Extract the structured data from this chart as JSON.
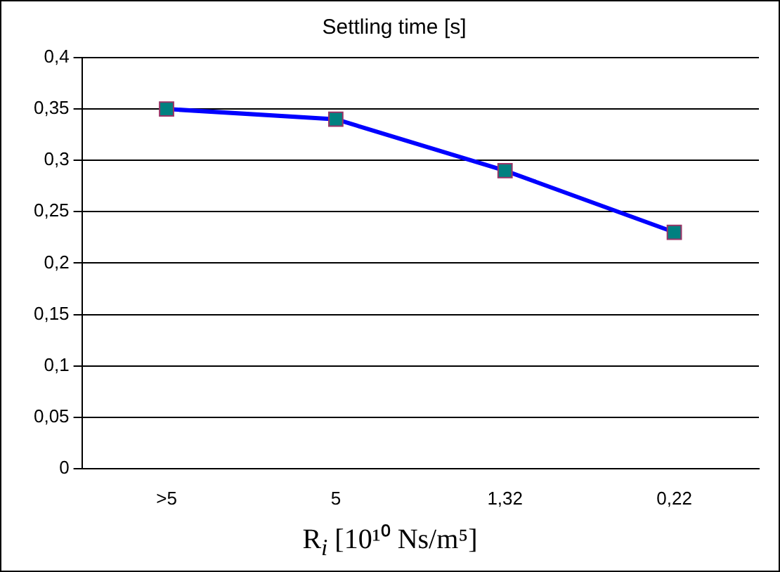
{
  "chart_data": {
    "type": "line",
    "title": "Settling time [s]",
    "xlabel": "R$_{i}$ [10¹⁰ Ns/m⁵]",
    "categories": [
      ">5",
      "5",
      "1,32",
      "0,22"
    ],
    "series": [
      {
        "color": "#0000ff",
        "values": [
          0.35,
          0.34,
          0.29,
          0.23
        ]
      }
    ],
    "ylim": [
      0,
      0.4
    ],
    "yticks": [
      {
        "value": 0,
        "label": "0"
      },
      {
        "value": 0.05,
        "label": "0,05"
      },
      {
        "value": 0.1,
        "label": "0,1"
      },
      {
        "value": 0.15,
        "label": "0,15"
      },
      {
        "value": 0.2,
        "label": "0,2"
      },
      {
        "value": 0.25,
        "label": "0,25"
      },
      {
        "value": 0.3,
        "label": "0,3"
      },
      {
        "value": 0.35,
        "label": "0,35"
      },
      {
        "value": 0.4,
        "label": "0,4"
      }
    ],
    "grid": "y",
    "legend": false,
    "marker": "square",
    "line_style": "solid"
  }
}
